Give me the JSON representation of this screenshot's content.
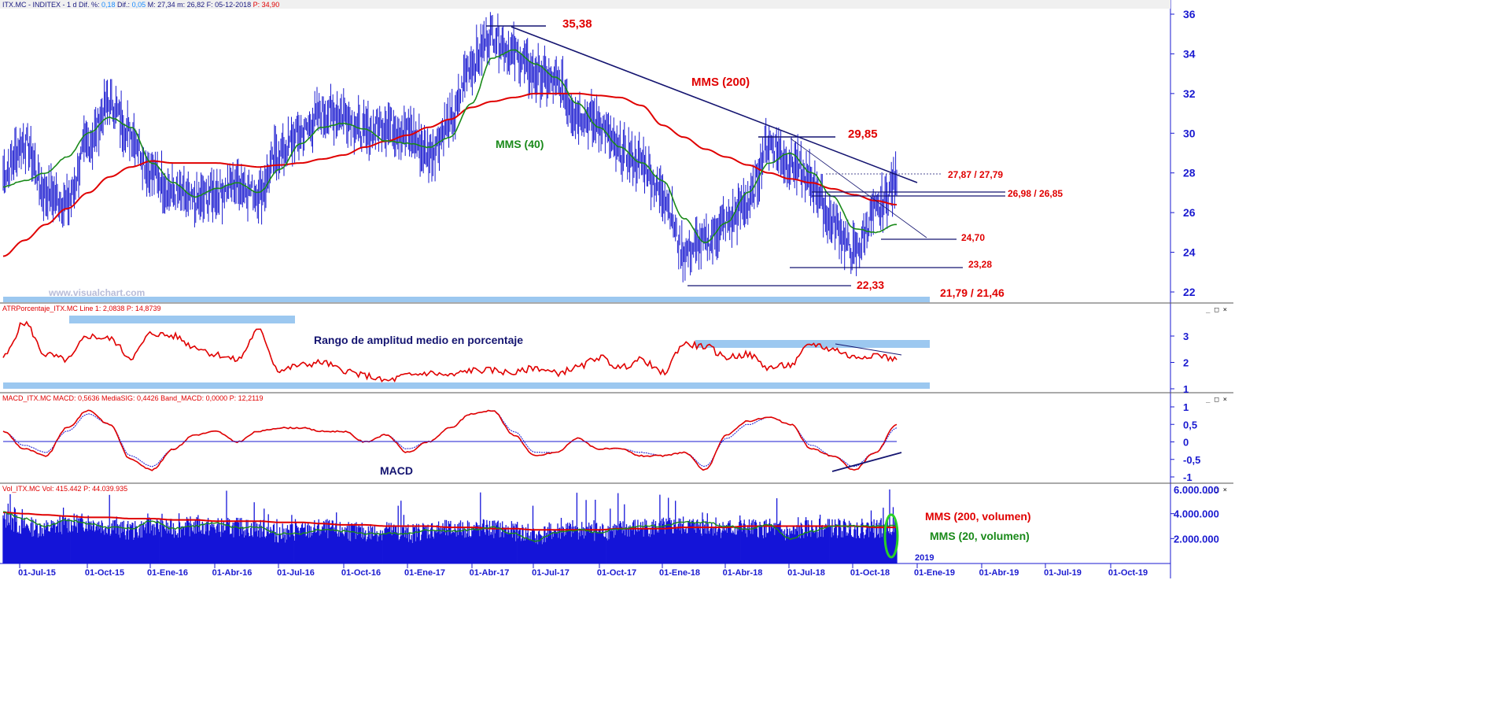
{
  "panels": {
    "price": {
      "header": {
        "left": "ITX.MC - INDITEX - 1 d  Dif. %: ",
        "dif_pct": "0,18",
        "dif_label": "  Dif.: ",
        "dif": "0,05",
        "rest": "  M: 27,34  m: 26,82  F: 05-12-2018  ",
        "p": "P: 34,90"
      },
      "watermark": "www.visualchart.com",
      "annotations": {
        "high": "35,38",
        "mms200": "MMS (200)",
        "mms40": "MMS (40)",
        "r2985": "29,85",
        "r2787": "27,87 / 27,79",
        "r2698": "26,98 / 26,85",
        "s2470": "24,70",
        "s2328": "23,28",
        "s2233": "22,33",
        "s2179": "21,79 / 21,46"
      },
      "yticks": [
        "36",
        "34",
        "32",
        "30",
        "28",
        "26",
        "24",
        "22"
      ]
    },
    "atr": {
      "header": {
        "left": "ATRPorcentaje_ITX.MC  Line 1: 2,0838  ",
        "p": "P: 14,8739"
      },
      "title": "Rango de amplitud medio en porcentaje",
      "yticks": [
        "3",
        "2",
        "1"
      ]
    },
    "macd": {
      "header": {
        "left": "MACD_ITX.MC  MACD: 0,5636  MediaSIG: 0,4426  Band_MACD: 0,0000  ",
        "p": "P: 12,2119"
      },
      "title": "MACD",
      "yticks": [
        "1",
        "0,5",
        "0",
        "-0,5",
        "-1"
      ]
    },
    "volume": {
      "header": {
        "left": "Vol_ITX.MC  Vol: 415.442  ",
        "p": "P: 44.039.935"
      },
      "label_200": "MMS (200, volumen)",
      "label_20": "MMS (20, volumen)",
      "yticks": [
        "4.000.000",
        "2.000.000"
      ],
      "ytick_top": "6.000.000"
    }
  },
  "xaxis": {
    "ticks": [
      "01-Jul-15",
      "01-Oct-15",
      "01-Ene-16",
      "01-Abr-16",
      "01-Jul-16",
      "01-Oct-16",
      "01-Ene-17",
      "01-Abr-17",
      "01-Jul-17",
      "01-Oct-17",
      "01-Ene-18",
      "01-Abr-18",
      "01-Jul-18",
      "01-Oct-18",
      "01-Ene-19",
      "01-Abr-19",
      "01-Jul-19",
      "01-Oct-19"
    ],
    "year_label": "2019"
  },
  "window_buttons": "_ □ ×",
  "colors": {
    "price": "#1a1ad0",
    "mms200": "#e00000",
    "mms40": "#1a8a1a",
    "trend": "#141470",
    "band": "#9cc8f0",
    "axis": "#1a1ad0"
  },
  "chart_data": [
    {
      "type": "line",
      "title": "ITX.MC - INDITEX - 1 d",
      "x": [
        "2015-06",
        "2015-07",
        "2015-08",
        "2015-09",
        "2015-10",
        "2015-11",
        "2015-12",
        "2016-01",
        "2016-02",
        "2016-03",
        "2016-04",
        "2016-05",
        "2016-06",
        "2016-07",
        "2016-08",
        "2016-09",
        "2016-10",
        "2016-11",
        "2016-12",
        "2017-01",
        "2017-02",
        "2017-03",
        "2017-04",
        "2017-05",
        "2017-06",
        "2017-07",
        "2017-08",
        "2017-09",
        "2017-10",
        "2017-11",
        "2017-12",
        "2018-01",
        "2018-02",
        "2018-03",
        "2018-04",
        "2018-05",
        "2018-06",
        "2018-07",
        "2018-08",
        "2018-09",
        "2018-10",
        "2018-11",
        "2018-12"
      ],
      "series": [
        {
          "name": "ITX.MC",
          "values": [
            28.0,
            29.5,
            27.0,
            26.5,
            29.5,
            31.5,
            30.0,
            28.0,
            27.0,
            26.5,
            27.0,
            27.5,
            27.0,
            29.0,
            30.0,
            31.0,
            31.0,
            30.0,
            30.5,
            30.0,
            29.0,
            30.5,
            33.5,
            35.0,
            34.0,
            33.0,
            32.5,
            31.0,
            30.5,
            29.0,
            28.5,
            27.0,
            24.0,
            24.5,
            25.5,
            26.5,
            29.5,
            28.5,
            27.5,
            25.5,
            24.0,
            26.0,
            27.5
          ]
        },
        {
          "name": "MMS (200)",
          "values": [
            23.8,
            24.6,
            25.4,
            26.2,
            27.0,
            27.8,
            28.3,
            28.6,
            28.5,
            28.5,
            28.5,
            28.4,
            28.3,
            28.4,
            28.5,
            28.7,
            28.9,
            29.3,
            29.6,
            29.9,
            30.3,
            30.7,
            31.3,
            31.6,
            31.8,
            32.0,
            32.0,
            32.0,
            31.9,
            31.8,
            31.4,
            30.4,
            29.8,
            29.2,
            28.8,
            28.4,
            28.0,
            27.7,
            27.5,
            27.2,
            26.9,
            26.6,
            26.4
          ]
        },
        {
          "name": "MMS (40)",
          "values": [
            27.3,
            27.6,
            28.0,
            28.8,
            30.0,
            30.8,
            30.3,
            28.5,
            27.5,
            26.8,
            27.2,
            27.5,
            27.0,
            28.2,
            29.5,
            30.3,
            30.5,
            30.2,
            29.6,
            29.5,
            29.3,
            29.8,
            31.5,
            33.8,
            34.2,
            33.5,
            32.8,
            31.5,
            30.3,
            29.3,
            28.5,
            27.6,
            25.7,
            24.5,
            25.5,
            27.0,
            28.5,
            29.0,
            28.0,
            26.8,
            25.2,
            25.0,
            25.4
          ]
        }
      ],
      "ylim": [
        22,
        36
      ],
      "annotations": [
        "35,38",
        "MMS (200)",
        "MMS (40)",
        "29,85",
        "27,87 / 27,79",
        "26,98 / 26,85",
        "24,70",
        "23,28",
        "22,33",
        "21,79 / 21,46"
      ]
    },
    {
      "type": "line",
      "title": "ATRPorcentaje_ITX.MC",
      "series": [
        {
          "name": "Line 1",
          "values": [
            2.2,
            3.5,
            2.3,
            2.1,
            3.0,
            2.9,
            2.2,
            3.1,
            3.0,
            2.6,
            2.3,
            2.1,
            3.2,
            1.7,
            1.9,
            2.0,
            1.7,
            1.5,
            1.3,
            1.5,
            1.6,
            1.5,
            1.7,
            1.7,
            1.6,
            1.8,
            1.6,
            1.8,
            2.2,
            1.8,
            2.1,
            1.6,
            2.7,
            2.6,
            2.2,
            2.3,
            1.8,
            1.9,
            2.7,
            2.5,
            2.2,
            2.3,
            2.1
          ]
        }
      ],
      "ylim": [
        1,
        3.8
      ]
    },
    {
      "type": "line",
      "title": "MACD_ITX.MC",
      "series": [
        {
          "name": "MACD",
          "values": [
            0.3,
            -0.2,
            -0.4,
            0.4,
            0.9,
            0.5,
            -0.5,
            -0.8,
            -0.2,
            0.2,
            0.3,
            0.0,
            0.3,
            0.4,
            0.4,
            0.3,
            0.3,
            0.0,
            0.2,
            -0.3,
            0.0,
            0.4,
            0.8,
            0.9,
            0.2,
            -0.4,
            -0.3,
            0.1,
            -0.2,
            -0.2,
            -0.4,
            -0.4,
            -0.3,
            -0.8,
            0.2,
            0.6,
            0.7,
            0.5,
            -0.2,
            -0.4,
            -0.8,
            -0.3,
            0.5
          ]
        },
        {
          "name": "MediaSIG",
          "values": [
            0.3,
            -0.1,
            -0.3,
            0.3,
            0.8,
            0.5,
            -0.4,
            -0.7,
            -0.2,
            0.2,
            0.3,
            0.0,
            0.3,
            0.4,
            0.4,
            0.3,
            0.3,
            0.0,
            0.2,
            -0.2,
            0.0,
            0.4,
            0.8,
            0.9,
            0.3,
            -0.3,
            -0.3,
            0.1,
            -0.2,
            -0.2,
            -0.3,
            -0.4,
            -0.3,
            -0.7,
            0.1,
            0.5,
            0.7,
            0.5,
            -0.1,
            -0.4,
            -0.7,
            -0.3,
            0.4
          ]
        }
      ],
      "ylim": [
        -1.1,
        1.1
      ]
    },
    {
      "type": "bar",
      "title": "Vol_ITX.MC",
      "series": [
        {
          "name": "Vol",
          "values": [
            3.5,
            3.0,
            2.8,
            3.2,
            3.3,
            3.0,
            2.6,
            3.0,
            2.8,
            3.0,
            2.9,
            2.9,
            2.8,
            2.4,
            2.6,
            2.8,
            2.6,
            2.5,
            2.6,
            2.4,
            2.7,
            2.7,
            2.8,
            2.8,
            2.6,
            2.2,
            2.6,
            2.7,
            2.6,
            2.7,
            2.9,
            2.9,
            3.0,
            3.0,
            2.8,
            2.8,
            2.8,
            2.4,
            2.8,
            2.8,
            2.8,
            2.8,
            3.1
          ]
        },
        {
          "name": "MMS (200, volumen)",
          "values": [
            4.1,
            4.0,
            3.9,
            3.8,
            3.7,
            3.7,
            3.6,
            3.6,
            3.5,
            3.5,
            3.4,
            3.4,
            3.4,
            3.3,
            3.3,
            3.2,
            3.1,
            3.1,
            3.0,
            3.0,
            3.0,
            2.9,
            2.9,
            2.8,
            2.8,
            2.7,
            2.7,
            2.7,
            2.7,
            2.8,
            2.8,
            2.8,
            2.9,
            2.9,
            2.9,
            3.0,
            3.0,
            3.0,
            3.0,
            3.0,
            3.0,
            2.9,
            2.9
          ]
        },
        {
          "name": "MMS (20, volumen)",
          "values": [
            4.1,
            3.6,
            3.0,
            3.5,
            3.2,
            2.9,
            2.8,
            3.4,
            2.8,
            3.0,
            3.3,
            2.9,
            2.9,
            2.4,
            2.4,
            2.7,
            2.6,
            2.4,
            2.4,
            2.4,
            2.7,
            2.6,
            2.7,
            2.9,
            2.4,
            1.8,
            2.5,
            2.7,
            2.5,
            2.8,
            3.0,
            3.0,
            3.3,
            3.3,
            3.0,
            2.8,
            3.1,
            2.0,
            2.6,
            3.0,
            3.0,
            3.0,
            3.1
          ]
        }
      ],
      "yunit": "millones",
      "ylim": [
        0,
        6
      ]
    }
  ]
}
